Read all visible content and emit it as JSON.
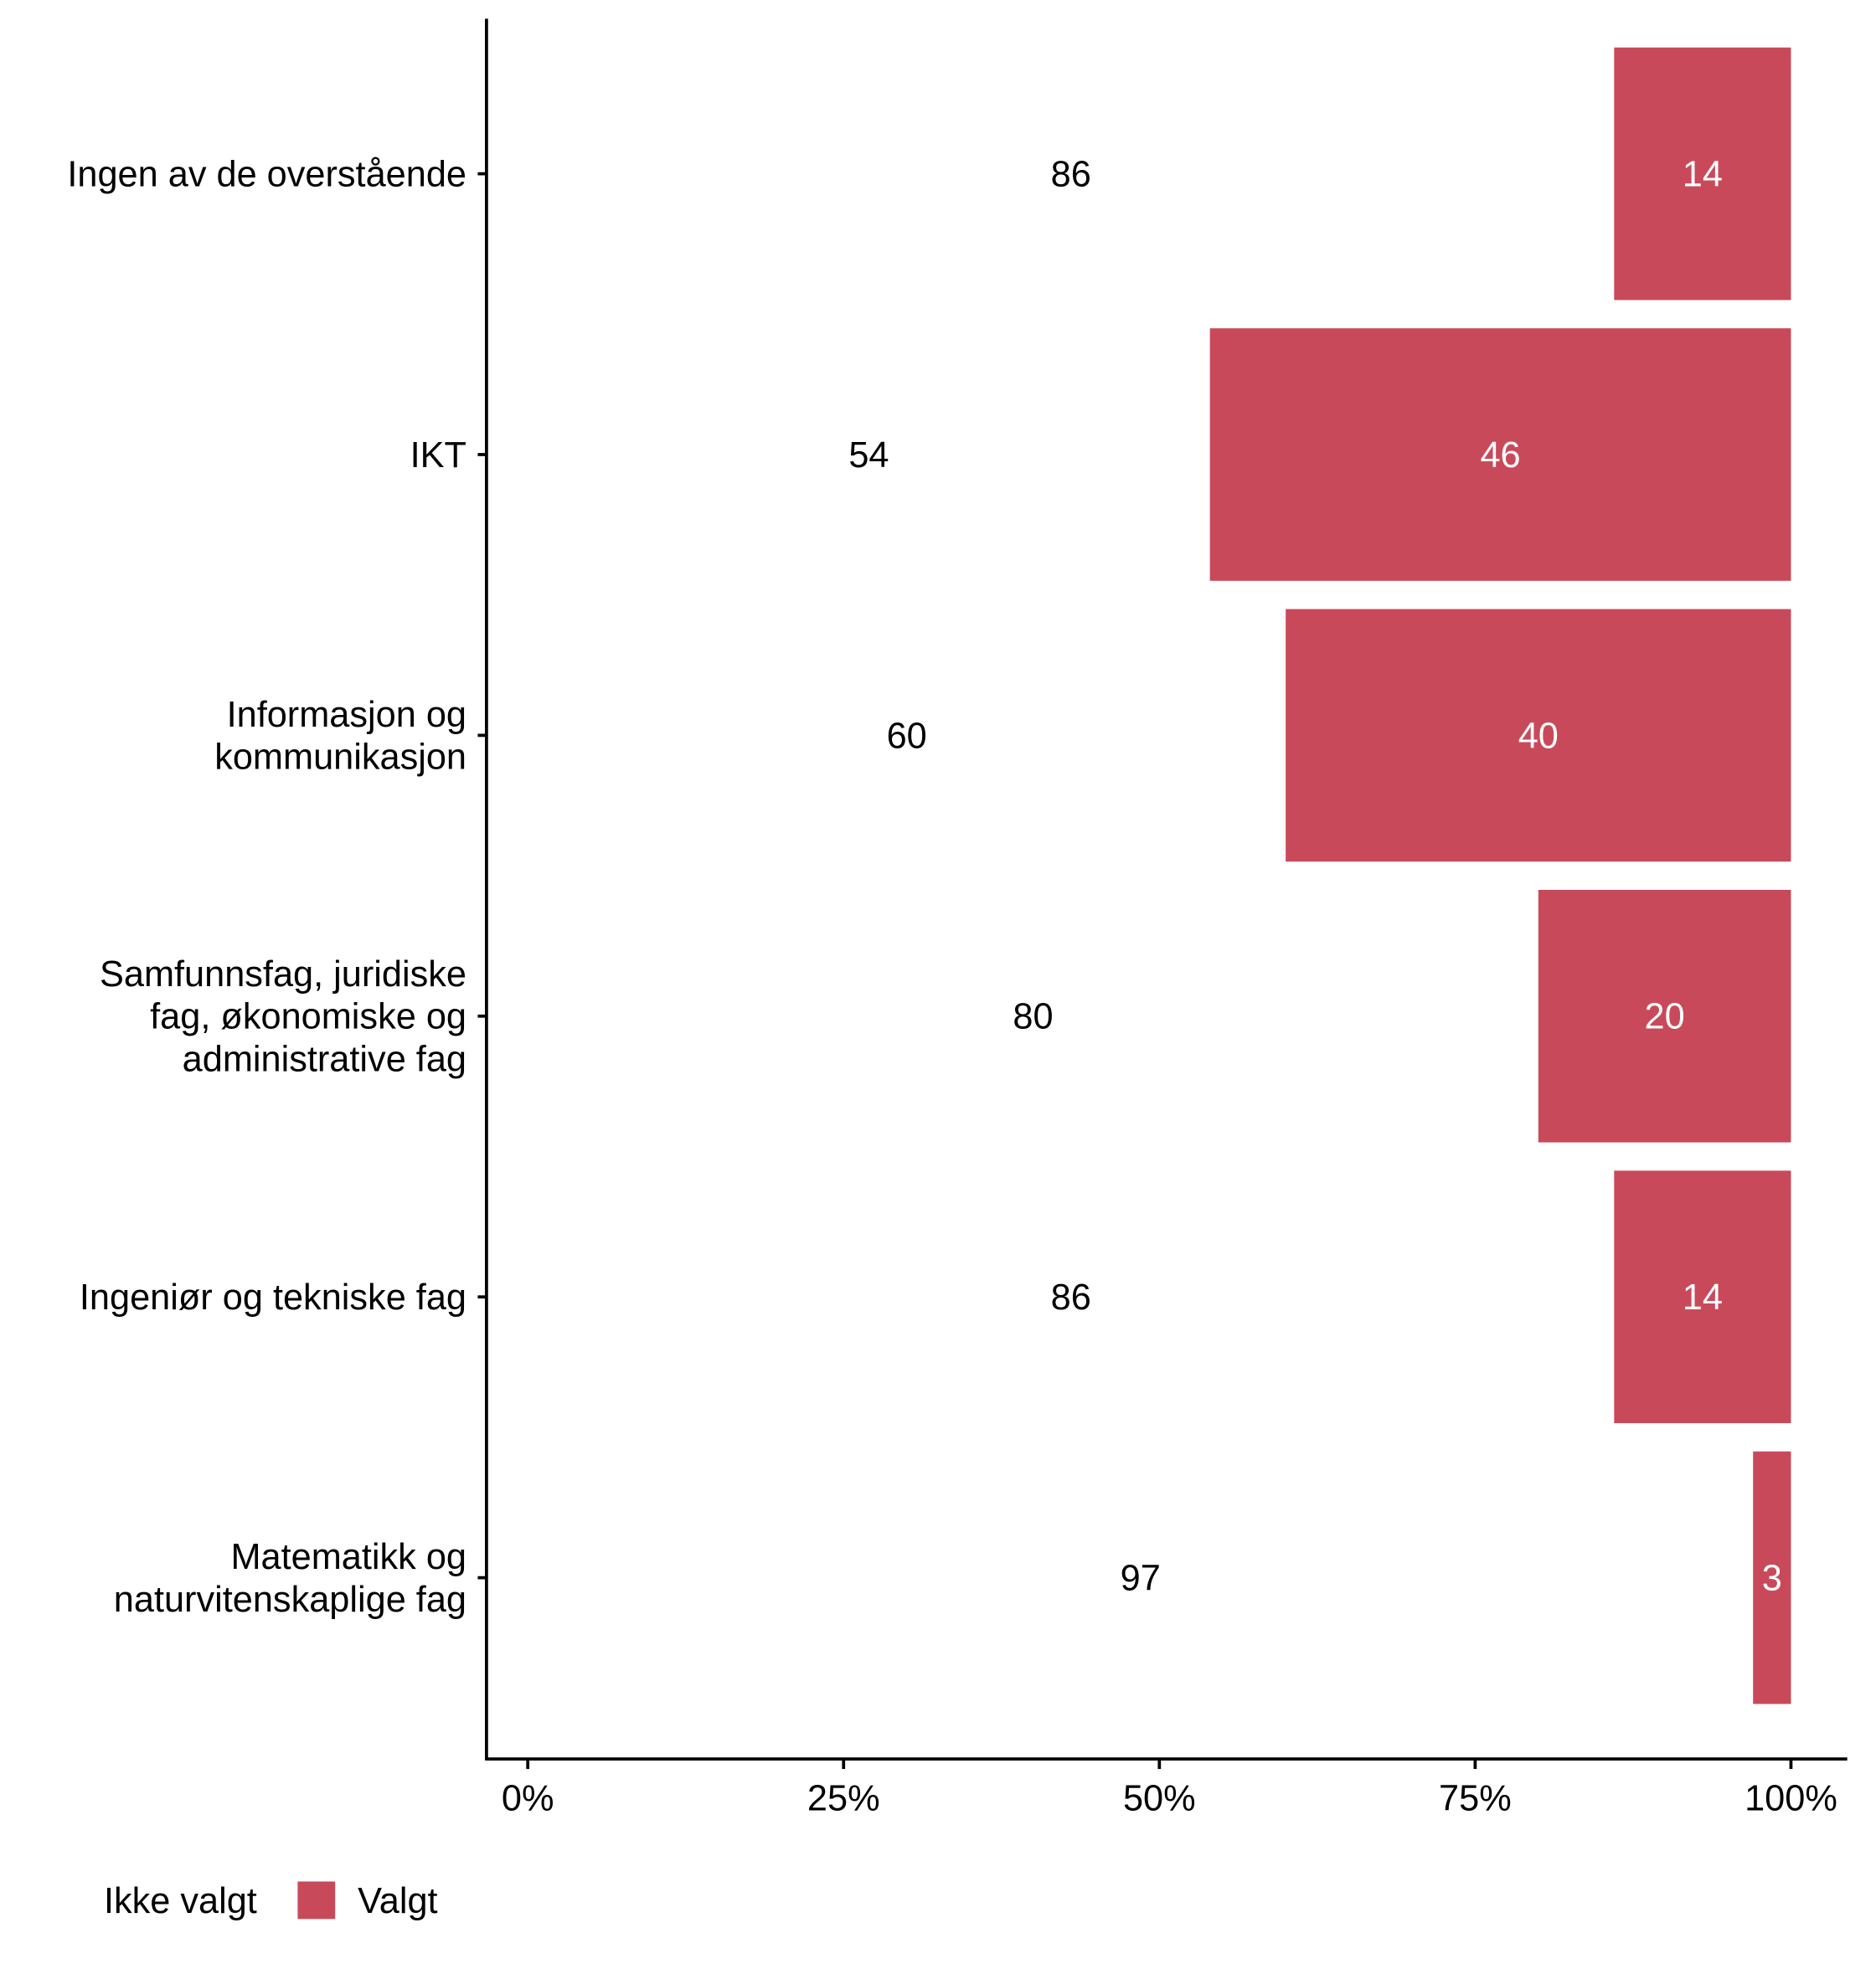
{
  "chart_data": {
    "type": "bar",
    "orientation": "horizontal",
    "stacked": true,
    "title": "",
    "xlabel": "",
    "ylabel": "",
    "xlim": [
      0,
      100
    ],
    "x_ticks": [
      "0%",
      "25%",
      "50%",
      "75%",
      "100%"
    ],
    "grid": false,
    "legend_position": "bottom-left",
    "categories": [
      [
        "Ingen av de overstående"
      ],
      [
        "IKT"
      ],
      [
        "Informasjon og",
        "kommunikasjon"
      ],
      [
        "Samfunnsfag, juridiske",
        "fag, økonomiske og",
        "administrative fag"
      ],
      [
        "Ingeniør og tekniske fag"
      ],
      [
        "Matematikk og",
        "naturvitenskaplige fag"
      ]
    ],
    "series": [
      {
        "name": "Ikke valgt",
        "color": "#ffffff",
        "values": [
          86,
          54,
          60,
          80,
          86,
          97
        ]
      },
      {
        "name": "Valgt",
        "color": "#c84a5a",
        "values": [
          14,
          46,
          40,
          20,
          14,
          3
        ]
      }
    ]
  }
}
